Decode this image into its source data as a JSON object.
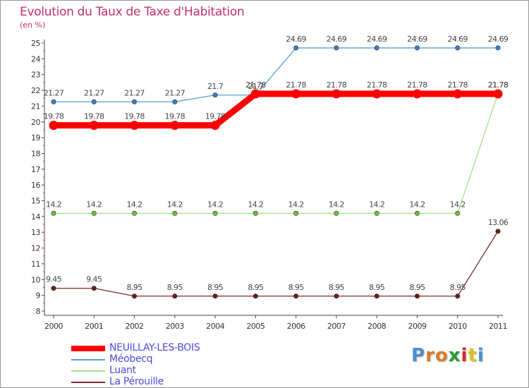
{
  "title": "Evolution du Taux de Taxe d'Habitation",
  "unit_label": "(en %)",
  "logo": {
    "letters": [
      "P",
      "r",
      "o",
      "x",
      "i",
      "t",
      "i"
    ],
    "colors": [
      "#4a90d0",
      "#e07a2a",
      "#e07a2a",
      "#2a9a3a",
      "#d02a2a",
      "#e0c020",
      "#4a90d0"
    ]
  },
  "chart_data": {
    "type": "line",
    "title": "Evolution du Taux de Taxe d'Habitation",
    "xlabel": "",
    "ylabel": "(en %)",
    "x": [
      "2000",
      "2001",
      "2002",
      "2003",
      "2004",
      "2005",
      "2006",
      "2007",
      "2008",
      "2009",
      "2010",
      "2011"
    ],
    "ylim": [
      8,
      25
    ],
    "yticks": [
      "8",
      "9",
      "10",
      "11",
      "12",
      "13",
      "14",
      "15",
      "16",
      "17",
      "18",
      "19",
      "20",
      "21",
      "22",
      "23",
      "24",
      "25"
    ],
    "grid": false,
    "legend_position": "bottom-left",
    "series": [
      {
        "name": "Méobecq",
        "color": "#5a9fd4",
        "marker": "#3a7fc0",
        "values": [
          21.27,
          21.27,
          21.27,
          21.27,
          21.7,
          21.7,
          24.69,
          24.69,
          24.69,
          24.69,
          24.69,
          24.69
        ],
        "labels": [
          "21.27",
          "21.27",
          "21.27",
          "21.27",
          "21.7",
          "21.7",
          "24.69",
          "24.69",
          "24.69",
          "24.69",
          "24.69",
          "24.69"
        ]
      },
      {
        "name": "Luant",
        "color": "#a8dc88",
        "marker": "#6cbf3a",
        "values": [
          14.2,
          14.2,
          14.2,
          14.2,
          14.2,
          14.2,
          14.2,
          14.2,
          14.2,
          14.2,
          14.2,
          21.78
        ],
        "labels": [
          "14.2",
          "14.2",
          "14.2",
          "14.2",
          "14.2",
          "14.2",
          "14.2",
          "14.2",
          "14.2",
          "14.2",
          "14.2",
          "21.78"
        ]
      },
      {
        "name": "La Pérouille",
        "color": "#7a2c2c",
        "marker": "#6a1c1c",
        "values": [
          9.45,
          9.45,
          8.95,
          8.95,
          8.95,
          8.95,
          8.95,
          8.95,
          8.95,
          8.95,
          8.95,
          13.06
        ],
        "labels": [
          "9.45",
          "9.45",
          "8.95",
          "8.95",
          "8.95",
          "8.95",
          "8.95",
          "8.95",
          "8.95",
          "8.95",
          "8.95",
          "13.06"
        ]
      },
      {
        "name": "NEUILLAY-LES-BOIS",
        "color": "#ff0000",
        "marker": "#ff0000",
        "values": [
          19.78,
          19.78,
          19.78,
          19.78,
          19.78,
          21.78,
          21.78,
          21.78,
          21.78,
          21.78,
          21.78,
          21.78
        ],
        "labels": [
          "19.78",
          "19.78",
          "19.78",
          "19.78",
          "19.78",
          "21.78",
          "21.78",
          "21.78",
          "21.78",
          "21.78",
          "21.78",
          "21.78"
        ]
      }
    ],
    "legend_order": [
      "NEUILLAY-LES-BOIS",
      "Méobecq",
      "Luant",
      "La Pérouille"
    ]
  }
}
